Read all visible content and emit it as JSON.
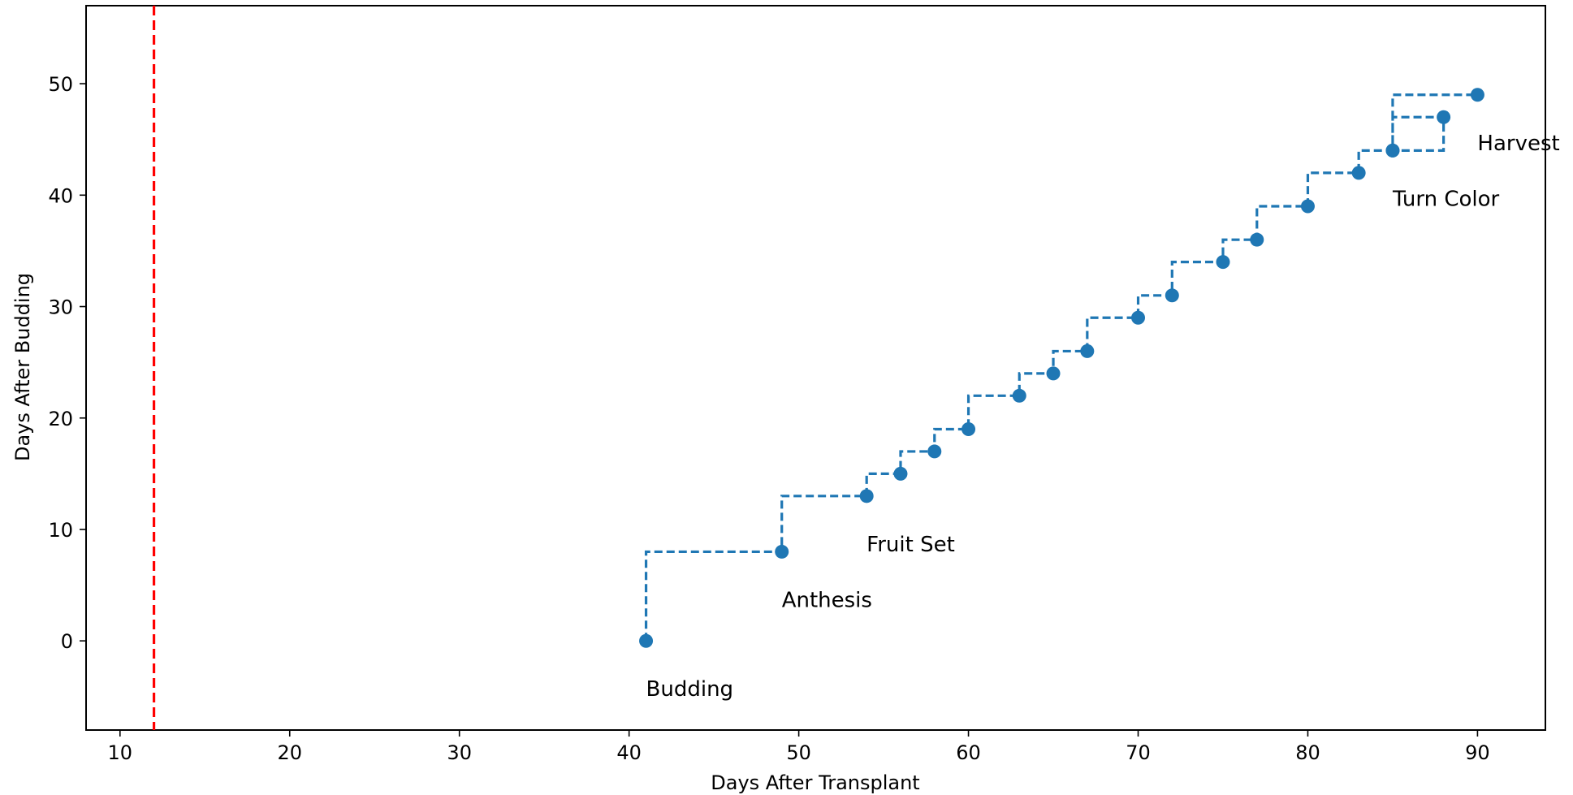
{
  "chart_data": {
    "type": "line",
    "xlabel": "Days After Transplant",
    "ylabel": "Days After Budding",
    "xlim": [
      8,
      94
    ],
    "ylim": [
      -8,
      57
    ],
    "xticks": [
      10,
      20,
      30,
      40,
      50,
      60,
      70,
      80,
      90
    ],
    "yticks": [
      0,
      10,
      20,
      30,
      40,
      50
    ],
    "grid": false,
    "legend": "none",
    "reference_line": {
      "x": 12,
      "style": "dashed",
      "color": "#ff0000"
    },
    "series": [
      {
        "style": "dashed steps with markers",
        "color": "#1f77b4",
        "x": [
          41,
          49,
          54,
          56,
          58,
          60,
          63,
          65,
          67,
          70,
          72,
          75,
          77,
          80,
          83,
          85,
          88,
          85,
          90
        ],
        "y": [
          0,
          8,
          13,
          15,
          17,
          19,
          22,
          24,
          26,
          29,
          31,
          34,
          36,
          39,
          42,
          44,
          47,
          44,
          49
        ]
      }
    ],
    "annotations": [
      {
        "text": "Budding",
        "x": 41,
        "y": 0
      },
      {
        "text": "Anthesis",
        "x": 49,
        "y": 8
      },
      {
        "text": "Fruit Set",
        "x": 54,
        "y": 13
      },
      {
        "text": "Turn Color",
        "x": 85,
        "y": 44
      },
      {
        "text": "Harvest",
        "x": 90,
        "y": 49
      }
    ]
  }
}
